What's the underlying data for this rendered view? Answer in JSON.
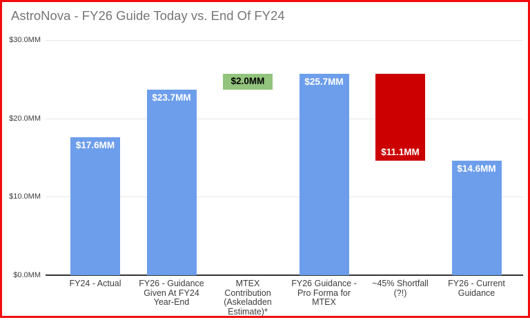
{
  "title": "AstroNova - FY26 Guide Today vs. End Of FY24",
  "colors": {
    "blue": "#6d9eeb",
    "green": "#93c47d",
    "red": "#cc0000",
    "border": "#f20d0d",
    "grid": "#e6e6e6",
    "axis": "#333333",
    "title_text": "#757575",
    "tick_text": "#3c3c3c"
  },
  "chart_data": {
    "type": "bar",
    "title": "AstroNova - FY26 Guide Today vs. End Of FY24",
    "xlabel": "",
    "ylabel": "",
    "ylim": [
      0,
      30
    ],
    "grid": "horizontal",
    "legend_position": "none",
    "yticks": [
      {
        "label": "$0.0MM",
        "value": 0
      },
      {
        "label": "$10.0MM",
        "value": 10
      },
      {
        "label": "$20.0MM",
        "value": 20
      },
      {
        "label": "$30.0MM",
        "value": 30
      }
    ],
    "categories": [
      "FY24 - Actual",
      "FY26 - Guidance Given At FY24 Year-End",
      "MTEX Contribution (Askeladden Estimate)*",
      "FY26 Guidance - Pro Forma for MTEX",
      "~45% Shortfall (?!)",
      "FY26 - Current Guidance"
    ],
    "bars": [
      {
        "category_lines": [
          "FY24 - Actual"
        ],
        "value_label": "$17.6MM",
        "start": 0,
        "end": 17.6,
        "color": "blue",
        "label_pos": "top",
        "label_color": "#ffffff"
      },
      {
        "category_lines": [
          "FY26 - Guidance",
          "Given At FY24",
          "Year-End"
        ],
        "value_label": "$23.7MM",
        "start": 0,
        "end": 23.7,
        "color": "blue",
        "label_pos": "top",
        "label_color": "#ffffff"
      },
      {
        "category_lines": [
          "MTEX",
          "Contribution",
          "(Askeladden",
          "Estimate)*"
        ],
        "value_label": "$2.0MM",
        "start": 23.7,
        "end": 25.7,
        "color": "green",
        "label_pos": "middle",
        "label_color": "#000000"
      },
      {
        "category_lines": [
          "FY26 Guidance -",
          "Pro Forma for",
          "MTEX"
        ],
        "value_label": "$25.7MM",
        "start": 0,
        "end": 25.7,
        "color": "blue",
        "label_pos": "top",
        "label_color": "#ffffff"
      },
      {
        "category_lines": [
          "~45% Shortfall",
          "(?!)"
        ],
        "value_label": "$11.1MM",
        "start": 14.6,
        "end": 25.7,
        "color": "red",
        "label_pos": "bottom",
        "label_color": "#ffffff"
      },
      {
        "category_lines": [
          "FY26 - Current",
          "Guidance"
        ],
        "value_label": "$14.6MM",
        "start": 0,
        "end": 14.6,
        "color": "blue",
        "label_pos": "top",
        "label_color": "#ffffff"
      }
    ]
  }
}
